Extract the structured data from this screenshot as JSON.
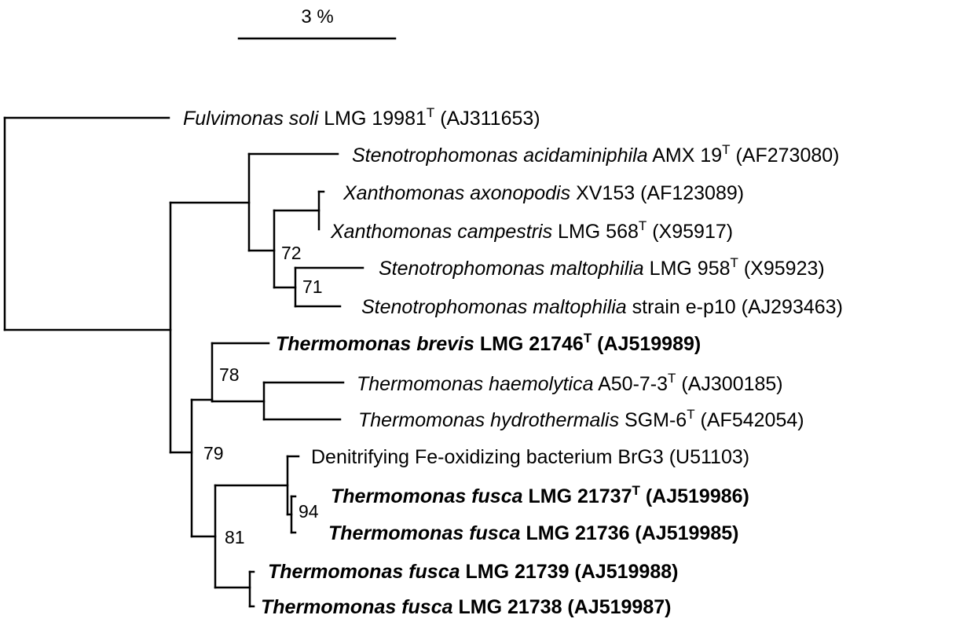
{
  "scale_bar": {
    "label": "3 %"
  },
  "taxa": [
    {
      "id": "fulvimonas",
      "species": "Fulvimonas soli",
      "strain": "LMG 19981",
      "type_strain": true,
      "accession": "(AJ311653)",
      "bold": false
    },
    {
      "id": "steno-acid",
      "species": "Stenotrophomonas acidaminiphila",
      "strain": "AMX 19",
      "type_strain": true,
      "accession": "(AF273080)",
      "bold": false
    },
    {
      "id": "xantho-axo",
      "species": "Xanthomonas axonopodis",
      "strain": "XV153",
      "type_strain": false,
      "accession": "(AF123089)",
      "bold": false
    },
    {
      "id": "xantho-camp",
      "species": "Xanthomonas campestris",
      "strain": "LMG 568",
      "type_strain": true,
      "accession": "(X95917)",
      "bold": false
    },
    {
      "id": "steno-malt-958",
      "species": "Stenotrophomonas maltophilia",
      "strain": "LMG 958",
      "type_strain": true,
      "accession": "(X95923)",
      "bold": false
    },
    {
      "id": "steno-malt-ep10",
      "species": "Stenotrophomonas maltophilia",
      "strain": "strain e-p10",
      "type_strain": false,
      "accession": "(AJ293463)",
      "bold": false
    },
    {
      "id": "thermo-brevis",
      "species": "Thermomonas brevis",
      "strain": "LMG 21746",
      "type_strain": true,
      "accession": "(AJ519989)",
      "bold": true
    },
    {
      "id": "thermo-haemo",
      "species": "Thermomonas haemolytica",
      "strain": "A50-7-3",
      "type_strain": true,
      "accession": "(AJ300185)",
      "bold": false
    },
    {
      "id": "thermo-hydro",
      "species": "Thermomonas hydrothermalis",
      "strain": "SGM-6",
      "type_strain": true,
      "accession": "(AF542054)",
      "bold": false
    },
    {
      "id": "brg3",
      "species": "",
      "strain": "Denitrifying Fe-oxidizing bacterium BrG3",
      "type_strain": false,
      "accession": "(U51103)",
      "bold": false
    },
    {
      "id": "fusca-21737",
      "species": "Thermomonas fusca",
      "strain": "LMG 21737",
      "type_strain": true,
      "accession": "(AJ519986)",
      "bold": true
    },
    {
      "id": "fusca-21736",
      "species": "Thermomonas fusca",
      "strain": "LMG 21736",
      "type_strain": false,
      "accession": "(AJ519985)",
      "bold": true
    },
    {
      "id": "fusca-21739",
      "species": "Thermomonas fusca",
      "strain": "LMG 21739",
      "type_strain": false,
      "accession": "(AJ519988)",
      "bold": true
    },
    {
      "id": "fusca-21738",
      "species": "Thermomonas fusca",
      "strain": "LMG 21738",
      "type_strain": false,
      "accession": "(AJ519987)",
      "bold": true
    }
  ],
  "type_marker": "T",
  "bootstrap_values": [
    "72",
    "71",
    "78",
    "79",
    "94",
    "81"
  ]
}
